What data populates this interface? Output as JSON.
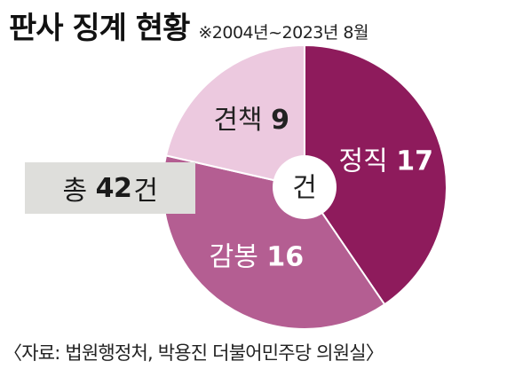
{
  "title": "판사 징계 현황",
  "subtitle": "※2004년~2023년 8월",
  "total": {
    "prefix": "총",
    "value": "42",
    "suffix": "건"
  },
  "source": "〈자료: 법원행정처, 박용진 더불어민주당 의원실〉",
  "chart_data": {
    "type": "pie",
    "center_label": "건",
    "slices": [
      {
        "label": "정직",
        "value": 17,
        "color": "#8e1b5c",
        "text_color": "#ffffff"
      },
      {
        "label": "감봉",
        "value": 16,
        "color": "#b45e92",
        "text_color": "#ffffff"
      },
      {
        "label": "견책",
        "value": 9,
        "color": "#ecc9df",
        "text_color": "#222222"
      }
    ]
  }
}
